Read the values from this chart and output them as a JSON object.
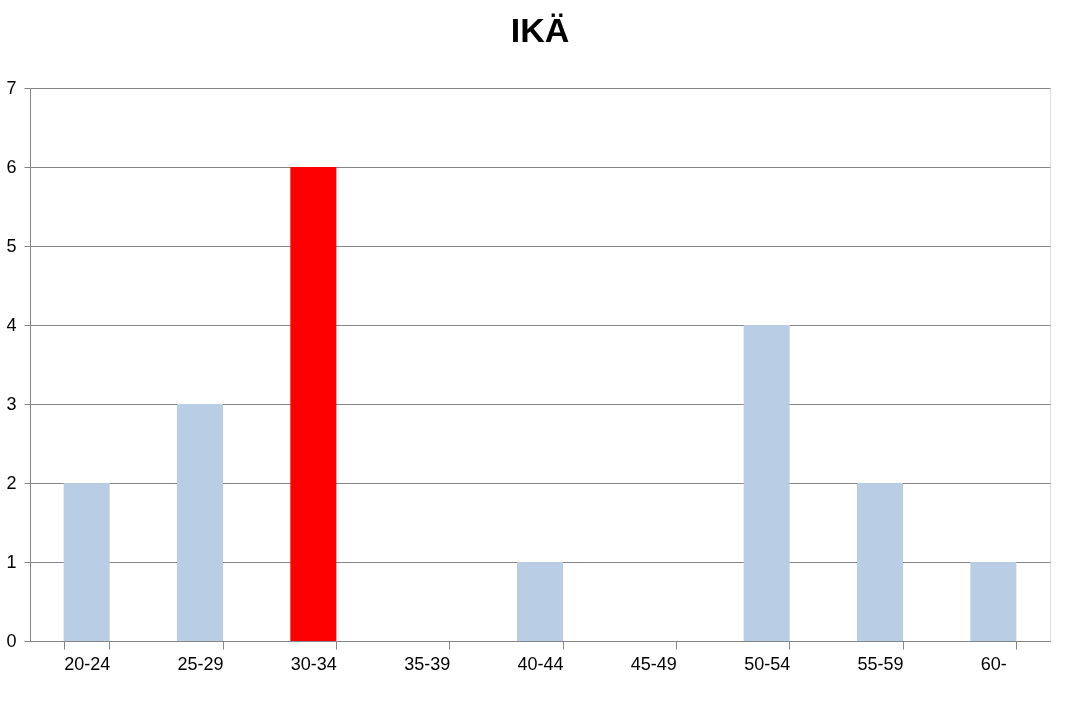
{
  "chart_data": {
    "type": "bar",
    "title": "IKÄ",
    "categories": [
      "20-24",
      "25-29",
      "30-34",
      "35-39",
      "40-44",
      "45-49",
      "50-54",
      "55-59",
      "60-"
    ],
    "values": [
      2,
      3,
      6,
      0,
      1,
      0,
      4,
      2,
      1
    ],
    "colors": [
      "#b9cde5",
      "#b9cde5",
      "#ff0000",
      "#b9cde5",
      "#b9cde5",
      "#b9cde5",
      "#b9cde5",
      "#b9cde5",
      "#b9cde5"
    ],
    "ylim": [
      0,
      7
    ],
    "yticks": [
      0,
      1,
      2,
      3,
      4,
      5,
      6,
      7
    ],
    "grid": "y",
    "legend": false
  }
}
